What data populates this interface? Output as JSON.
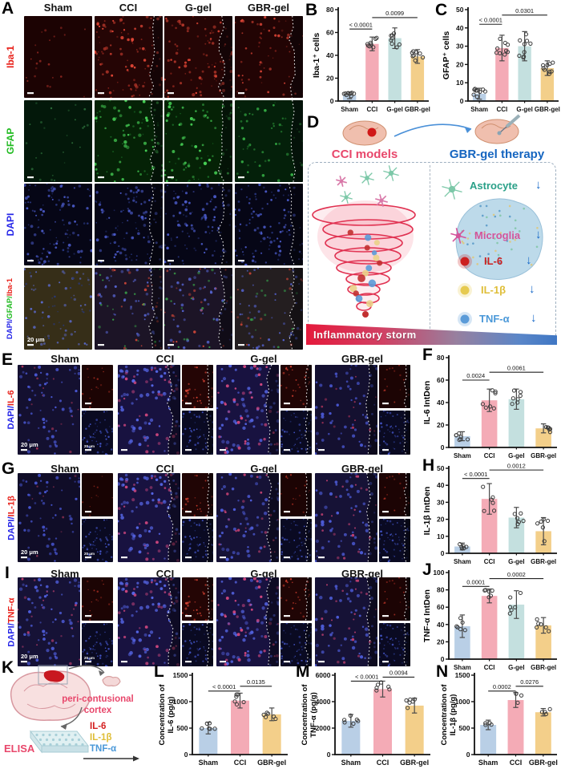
{
  "bar_colors": {
    "Sham": "#b9cfe6",
    "CCI": "#f4abb6",
    "G-gel": "#c4e0df",
    "GBR-gel": "#f3cf8a"
  },
  "panel_a": {
    "label": "A",
    "columns": [
      "Sham",
      "CCI",
      "G-gel",
      "GBR-gel"
    ],
    "row_labels": [
      {
        "parts": [
          {
            "t": "Iba-1",
            "c": "#e8211a"
          }
        ]
      },
      {
        "parts": [
          {
            "t": "GFAP",
            "c": "#1fba1f"
          }
        ]
      },
      {
        "parts": [
          {
            "t": "DAPI",
            "c": "#2525e8"
          }
        ]
      },
      {
        "parts": [
          {
            "t": "DAPI/",
            "c": "#2525e8"
          },
          {
            "t": "GFAP/",
            "c": "#1fba1f"
          },
          {
            "t": "Iba-1",
            "c": "#e8211a"
          }
        ]
      }
    ],
    "grid": [
      [
        "iba_dim",
        "iba_hi",
        "iba_hi",
        "iba_med"
      ],
      [
        "gfap_dim",
        "gfap_hi",
        "gfap_hi",
        "gfap_med"
      ],
      [
        "dapi",
        "dapi",
        "dapi",
        "dapi"
      ],
      [
        "merge_sham",
        "merge_hi",
        "merge_hi",
        "merge_med"
      ]
    ],
    "contours": [
      false,
      true,
      true,
      true
    ],
    "scalebar_text": "20 μm"
  },
  "panel_e": {
    "label": "E",
    "columns": [
      "Sham",
      "CCI",
      "G-gel",
      "GBR-gel"
    ],
    "row_label": {
      "parts": [
        {
          "t": "DAPI/",
          "c": "#2525e8"
        },
        {
          "t": "IL-6",
          "c": "#e8211a"
        }
      ]
    },
    "large": [
      "m_lo",
      "m_hi",
      "m_hi",
      "m_lo"
    ],
    "small_top": [
      "sr1",
      "sr3",
      "sr2",
      "sr1"
    ],
    "small_bottom": "sb",
    "contours": [
      false,
      true,
      true,
      true
    ],
    "scalebar_text": "20 μm"
  },
  "panel_g": {
    "label": "G",
    "columns": [
      "Sham",
      "CCI",
      "G-gel",
      "GBR-gel"
    ],
    "row_label": {
      "parts": [
        {
          "t": "DAPI/",
          "c": "#2525e8"
        },
        {
          "t": "IL-1β",
          "c": "#e8211a"
        }
      ]
    },
    "large": [
      "m_dim",
      "m_hi",
      "m_med",
      "m_med"
    ],
    "small_top": [
      "sr0",
      "sr2",
      "sr1",
      "sr1"
    ],
    "small_bottom": "sb",
    "contours": [
      false,
      true,
      true,
      true
    ],
    "scalebar_text": "20 μm"
  },
  "panel_i": {
    "label": "I",
    "columns": [
      "Sham",
      "CCI",
      "G-gel",
      "GBR-gel"
    ],
    "row_label": {
      "parts": [
        {
          "t": "DAPI/",
          "c": "#2525e8"
        },
        {
          "t": "TNF-α",
          "c": "#e8211a"
        }
      ]
    },
    "large": [
      "m_med",
      "m_hi",
      "m_hi",
      "m_med"
    ],
    "small_top": [
      "sr1",
      "sr3",
      "sr2",
      "sr1"
    ],
    "small_bottom": "sb",
    "contours": [
      false,
      true,
      true,
      true
    ],
    "scalebar_text": "20 μm"
  },
  "micro_styles": {
    "iba_dim": {
      "bg": "#1c0303",
      "dots": [
        {
          "c": "#8a2620",
          "n": 22,
          "r": 1.1
        }
      ]
    },
    "iba_hi": {
      "bg": "#250505",
      "dots": [
        {
          "c": "#e24636",
          "n": 55,
          "r": 1.5
        },
        {
          "c": "#8a241c",
          "n": 45,
          "r": 1.0
        }
      ]
    },
    "iba_med": {
      "bg": "#220404",
      "dots": [
        {
          "c": "#d44234",
          "n": 34,
          "r": 1.3
        },
        {
          "c": "#7a201a",
          "n": 30,
          "r": 1.0
        }
      ]
    },
    "gfap_dim": {
      "bg": "#03180a",
      "dots": [
        {
          "c": "#2a6a38",
          "n": 26,
          "r": 1.1
        }
      ]
    },
    "gfap_hi": {
      "bg": "#052206",
      "dots": [
        {
          "c": "#46cf55",
          "n": 50,
          "r": 1.6
        },
        {
          "c": "#1e7a2c",
          "n": 35,
          "r": 1.0
        }
      ]
    },
    "gfap_med": {
      "bg": "#04200a",
      "dots": [
        {
          "c": "#35ae45",
          "n": 30,
          "r": 1.3
        },
        {
          "c": "#1e6a28",
          "n": 22,
          "r": 1.0
        }
      ]
    },
    "dapi": {
      "bg": "#060616",
      "dots": [
        {
          "c": "#4a5ac8",
          "n": 65,
          "r": 1.4
        },
        {
          "c": "#28367e",
          "n": 45,
          "r": 1.0
        }
      ]
    },
    "merge_sham": {
      "bg": "#362e18",
      "dots": [
        {
          "c": "#5a68c4",
          "n": 50,
          "r": 1.3
        },
        {
          "c": "#2a3878",
          "n": 28,
          "r": 1.0
        }
      ]
    },
    "merge_hi": {
      "bg": "#1c1426",
      "dots": [
        {
          "c": "#5462cc",
          "n": 48,
          "r": 1.4
        },
        {
          "c": "#cc4638",
          "n": 22,
          "r": 1.3
        },
        {
          "c": "#3aa84a",
          "n": 18,
          "r": 1.3
        }
      ]
    },
    "merge_med": {
      "bg": "#241e20",
      "dots": [
        {
          "c": "#5462cc",
          "n": 45,
          "r": 1.3
        },
        {
          "c": "#b84034",
          "n": 16,
          "r": 1.2
        },
        {
          "c": "#35984a",
          "n": 12,
          "r": 1.2
        }
      ]
    },
    "m_dim": {
      "bg": "#100d28",
      "dots": [
        {
          "c": "#4553cc",
          "n": 55,
          "r": 1.5
        },
        {
          "c": "#8c3050",
          "n": 8,
          "r": 1.1
        }
      ]
    },
    "m_lo": {
      "bg": "#141030",
      "dots": [
        {
          "c": "#4a58d4",
          "n": 58,
          "r": 1.5
        },
        {
          "c": "#aa3458",
          "n": 14,
          "r": 1.2
        }
      ]
    },
    "m_med": {
      "bg": "#161236",
      "dots": [
        {
          "c": "#4f5edc",
          "n": 60,
          "r": 1.6
        },
        {
          "c": "#c04070",
          "n": 22,
          "r": 1.3
        }
      ]
    },
    "m_hi": {
      "bg": "#181240",
      "dots": [
        {
          "c": "#5565e4",
          "n": 64,
          "r": 1.7
        },
        {
          "c": "#d44880",
          "n": 36,
          "r": 1.5
        }
      ]
    },
    "sr0": {
      "bg": "#180303",
      "dots": [
        {
          "c": "#7a2018",
          "n": 10,
          "r": 0.8
        }
      ]
    },
    "sr1": {
      "bg": "#1c0404",
      "dots": [
        {
          "c": "#9a2a20",
          "n": 16,
          "r": 0.9
        }
      ]
    },
    "sr2": {
      "bg": "#200505",
      "dots": [
        {
          "c": "#c23a2c",
          "n": 24,
          "r": 1.0
        }
      ]
    },
    "sr3": {
      "bg": "#240505",
      "dots": [
        {
          "c": "#d84434",
          "n": 30,
          "r": 1.1
        }
      ]
    },
    "sb": {
      "bg": "#0a0a22",
      "dots": [
        {
          "c": "#4455c8",
          "n": 34,
          "r": 1.0
        },
        {
          "c": "#26347e",
          "n": 22,
          "r": 0.8
        }
      ]
    }
  },
  "diagram_d": {
    "label": "D",
    "cci_title": "CCI models",
    "cci_color": "#e8476b",
    "therapy_title": "GBR-gel therapy",
    "therapy_color": "#1565c0",
    "items": [
      {
        "label": "Astrocyte",
        "color": "#2aa088",
        "icon": "astrocyte-icon"
      },
      {
        "label": "Microglia",
        "color": "#d4549a",
        "icon": "microglia-icon"
      },
      {
        "label": "IL-6",
        "color": "#cc2020",
        "icon": "il6-dot-icon"
      },
      {
        "label": "IL-1β",
        "color": "#dfbe38",
        "icon": "il1b-dot-icon"
      },
      {
        "label": "TNF-α",
        "color": "#4a98d8",
        "icon": "tnfa-dot-icon"
      }
    ],
    "arrow": "↓",
    "banner": "Inflammatory storm"
  },
  "diagram_k": {
    "label": "K",
    "line1": "peri-contusional",
    "line2": "cortex",
    "text_color": "#e8476b",
    "elisa": "ELISA",
    "targets": [
      {
        "label": "IL-6",
        "color": "#d42020"
      },
      {
        "label": "IL-1β",
        "color": "#dfbe38"
      },
      {
        "label": "TNF-α",
        "color": "#4a98d8"
      }
    ]
  },
  "chart_data": [
    {
      "id": "B",
      "type": "bar",
      "ylabel": "Iba-1⁺ cells",
      "categories": [
        "Sham",
        "CCI",
        "G-gel",
        "GBR-gel"
      ],
      "values": [
        5,
        50,
        55,
        39
      ],
      "errors": [
        3,
        6,
        9,
        6
      ],
      "ylim": [
        0,
        80
      ],
      "yticks": [
        0,
        20,
        40,
        60,
        80
      ],
      "n_points": 8,
      "sig": [
        {
          "a": 0,
          "b": 1,
          "label": "< 0.0001",
          "y": 63
        },
        {
          "a": 1,
          "b": 3,
          "label": "0.0099",
          "y": 73
        }
      ]
    },
    {
      "id": "C",
      "type": "bar",
      "ylabel": "GFAP⁺ cells",
      "categories": [
        "Sham",
        "CCI",
        "G-gel",
        "GBR-gel"
      ],
      "values": [
        4,
        29,
        30,
        18
      ],
      "errors": [
        3,
        7,
        8,
        4
      ],
      "ylim": [
        0,
        50
      ],
      "yticks": [
        0,
        10,
        20,
        30,
        40,
        50
      ],
      "n_points": 9,
      "sig": [
        {
          "a": 0,
          "b": 1,
          "label": "< 0.0001",
          "y": 42
        },
        {
          "a": 1,
          "b": 3,
          "label": "0.0301",
          "y": 47
        }
      ]
    },
    {
      "id": "F",
      "type": "bar",
      "ylabel": "IL-6 IntDen",
      "categories": [
        "Sham",
        "CCI",
        "G-gel",
        "GBR-gel"
      ],
      "values": [
        10,
        42,
        43,
        17
      ],
      "errors": [
        4,
        10,
        9,
        4
      ],
      "ylim": [
        0,
        80
      ],
      "yticks": [
        0,
        20,
        40,
        60,
        80
      ],
      "n_points": 7,
      "sig": [
        {
          "a": 0,
          "b": 1,
          "label": "0.0024",
          "y": 60
        },
        {
          "a": 1,
          "b": 3,
          "label": "0.0061",
          "y": 67
        }
      ]
    },
    {
      "id": "H",
      "type": "bar",
      "ylabel": "IL-1β IntDen",
      "categories": [
        "Sham",
        "CCI",
        "G-gel",
        "GBR-gel"
      ],
      "values": [
        4,
        32,
        21,
        13
      ],
      "errors": [
        2,
        9,
        6,
        8
      ],
      "ylim": [
        0,
        50
      ],
      "yticks": [
        0,
        10,
        20,
        30,
        40,
        50
      ],
      "n_points": 6,
      "sig": [
        {
          "a": 0,
          "b": 1,
          "label": "< 0.0001",
          "y": 44
        },
        {
          "a": 1,
          "b": 3,
          "label": "0.0012",
          "y": 49
        }
      ]
    },
    {
      "id": "J",
      "type": "bar",
      "ylabel": "TNF-α IntDen",
      "categories": [
        "Sham",
        "CCI",
        "G-gel",
        "GBR-gel"
      ],
      "values": [
        38,
        73,
        63,
        39
      ],
      "errors": [
        13,
        8,
        16,
        9
      ],
      "ylim": [
        0,
        100
      ],
      "yticks": [
        0,
        20,
        40,
        60,
        80,
        100
      ],
      "n_points": 6,
      "sig": [
        {
          "a": 0,
          "b": 1,
          "label": "0.0001",
          "y": 84
        },
        {
          "a": 1,
          "b": 3,
          "label": "0.0002",
          "y": 93
        }
      ]
    },
    {
      "id": "L",
      "type": "bar",
      "ylabel": "Concentration of\nIL-6 (pg/g)",
      "categories": [
        "Sham",
        "CCI",
        "GBR-gel"
      ],
      "values": [
        500,
        1020,
        760
      ],
      "errors": [
        110,
        140,
        120
      ],
      "ylim": [
        0,
        1500
      ],
      "yticks": [
        0,
        500,
        1000,
        1500
      ],
      "n_points": 6,
      "sig": [
        {
          "a": 0,
          "b": 1,
          "label": "< 0.0001",
          "y": 1200
        },
        {
          "a": 1,
          "b": 2,
          "label": "0.0135",
          "y": 1290
        }
      ]
    },
    {
      "id": "M",
      "type": "bar",
      "ylabel": "Concentration of\nTNF-α (pg/g)",
      "categories": [
        "Sham",
        "CCI",
        "GBR-gel"
      ],
      "values": [
        2550,
        4950,
        3700
      ],
      "errors": [
        480,
        600,
        560
      ],
      "ylim": [
        0,
        6000
      ],
      "yticks": [
        0,
        2000,
        4000,
        6000
      ],
      "n_points": 6,
      "sig": [
        {
          "a": 0,
          "b": 1,
          "label": "< 0.0001",
          "y": 5550
        },
        {
          "a": 1,
          "b": 2,
          "label": "0.0094",
          "y": 5850
        }
      ]
    },
    {
      "id": "N",
      "type": "bar",
      "ylabel": "Concentration of\nIL-1β (pg/g)",
      "categories": [
        "Sham",
        "CCI",
        "GBR-gel"
      ],
      "values": [
        560,
        1030,
        800
      ],
      "errors": [
        90,
        140,
        70
      ],
      "ylim": [
        0,
        1500
      ],
      "yticks": [
        0,
        500,
        1000,
        1500
      ],
      "n_points": 4,
      "sig": [
        {
          "a": 0,
          "b": 1,
          "label": "0.0002",
          "y": 1200
        },
        {
          "a": 1,
          "b": 2,
          "label": "0.0276",
          "y": 1290
        }
      ]
    }
  ]
}
